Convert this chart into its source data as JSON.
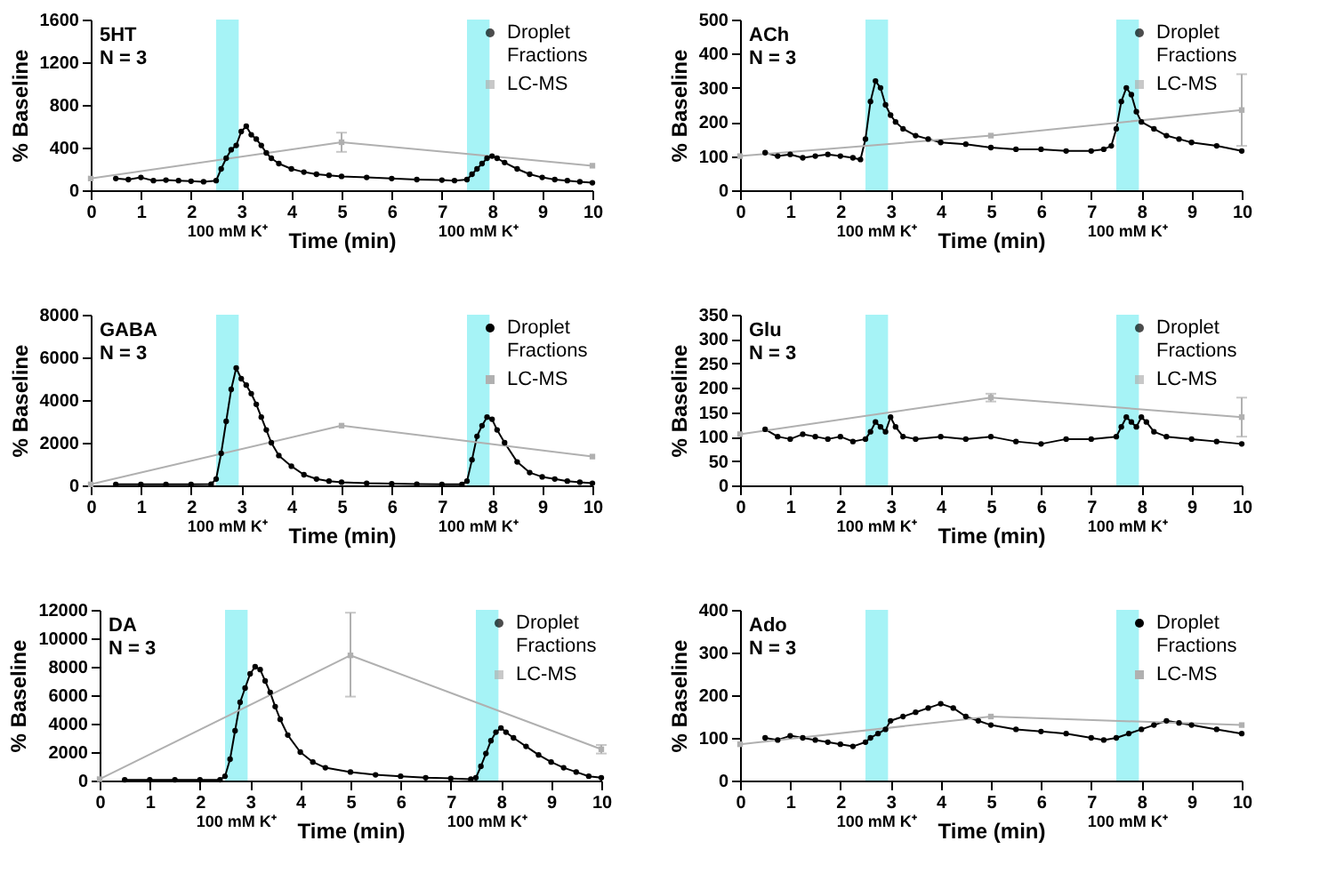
{
  "chart_data": [
    {
      "type": "line",
      "annotations": [
        "5HT",
        "N = 3"
      ],
      "xlabel": "Time (min)",
      "ylabel": "% Baseline",
      "xlim": [
        0,
        10
      ],
      "xticks": [
        0,
        1,
        2,
        3,
        4,
        5,
        6,
        7,
        8,
        9,
        10
      ],
      "ylim": [
        0,
        1600
      ],
      "yticks": [
        0,
        400,
        800,
        1200,
        1600
      ],
      "legend": "top right",
      "grid": false,
      "bands": [
        {
          "axis": "x",
          "from": 2.5,
          "to": 2.95,
          "label": "100 mM K⁺",
          "color": "#a6f3f6"
        },
        {
          "axis": "x",
          "from": 7.5,
          "to": 7.95,
          "label": "100 mM K⁺",
          "color": "#a6f3f6"
        }
      ],
      "series": [
        {
          "name": "Droplet Fractions",
          "color": "#000000",
          "marker": "circle",
          "x": [
            0.5,
            0.75,
            1,
            1.25,
            1.5,
            1.75,
            2,
            2.25,
            2.5,
            2.6,
            2.7,
            2.8,
            2.9,
            3,
            3.1,
            3.2,
            3.3,
            3.4,
            3.5,
            3.6,
            3.75,
            4,
            4.25,
            4.5,
            4.75,
            5,
            5.5,
            6,
            6.5,
            7,
            7.25,
            7.5,
            7.6,
            7.7,
            7.8,
            7.9,
            8,
            8.1,
            8.25,
            8.5,
            8.75,
            9,
            9.25,
            9.5,
            9.75,
            10
          ],
          "values": [
            110,
            100,
            120,
            90,
            95,
            90,
            85,
            80,
            90,
            200,
            300,
            380,
            420,
            550,
            600,
            520,
            480,
            420,
            350,
            300,
            250,
            200,
            170,
            150,
            140,
            130,
            120,
            110,
            100,
            95,
            90,
            100,
            150,
            200,
            250,
            300,
            320,
            300,
            260,
            200,
            150,
            120,
            100,
            90,
            80,
            70
          ]
        },
        {
          "name": "LC-MS",
          "color": "#b0b0b0",
          "marker": "square",
          "x": [
            0,
            5,
            10
          ],
          "values": [
            110,
            450,
            230
          ],
          "errors": [
            null,
            90,
            null
          ]
        }
      ]
    },
    {
      "type": "line",
      "annotations": [
        "ACh",
        "N = 3"
      ],
      "xlabel": "Time (min)",
      "ylabel": "% Baseline",
      "xlim": [
        0,
        10
      ],
      "xticks": [
        0,
        1,
        2,
        3,
        4,
        5,
        6,
        7,
        8,
        9,
        10
      ],
      "ylim": [
        0,
        500
      ],
      "yticks": [
        0,
        100,
        200,
        300,
        400,
        500
      ],
      "legend": "top right",
      "grid": false,
      "bands": [
        {
          "axis": "x",
          "from": 2.5,
          "to": 2.95,
          "label": "100 mM K⁺",
          "color": "#a6f3f6"
        },
        {
          "axis": "x",
          "from": 7.5,
          "to": 7.95,
          "label": "100 mM K⁺",
          "color": "#a6f3f6"
        }
      ],
      "series": [
        {
          "name": "Droplet Fractions",
          "color": "#000000",
          "marker": "circle",
          "x": [
            0.5,
            0.75,
            1,
            1.25,
            1.5,
            1.75,
            2,
            2.25,
            2.4,
            2.5,
            2.6,
            2.7,
            2.8,
            2.9,
            3,
            3.1,
            3.25,
            3.5,
            3.75,
            4,
            4.5,
            5,
            5.5,
            6,
            6.5,
            7,
            7.25,
            7.4,
            7.5,
            7.6,
            7.7,
            7.8,
            7.9,
            8,
            8.25,
            8.5,
            8.75,
            9,
            9.5,
            10
          ],
          "values": [
            110,
            100,
            105,
            95,
            100,
            105,
            100,
            95,
            90,
            150,
            260,
            320,
            300,
            250,
            220,
            200,
            180,
            160,
            150,
            140,
            135,
            125,
            120,
            120,
            115,
            115,
            120,
            130,
            180,
            260,
            300,
            280,
            230,
            200,
            180,
            160,
            150,
            140,
            130,
            115
          ]
        },
        {
          "name": "LC-MS",
          "color": "#b0b0b0",
          "marker": "square",
          "x": [
            0,
            5,
            10
          ],
          "values": [
            100,
            160,
            235
          ],
          "errors": [
            null,
            null,
            105
          ]
        }
      ]
    },
    {
      "type": "line",
      "annotations": [
        "GABA",
        "N = 3"
      ],
      "xlabel": "Time (min)",
      "ylabel": "% Baseline",
      "xlim": [
        0,
        10
      ],
      "xticks": [
        0,
        1,
        2,
        3,
        4,
        5,
        6,
        7,
        8,
        9,
        10
      ],
      "ylim": [
        0,
        8000
      ],
      "yticks": [
        0,
        2000,
        4000,
        6000,
        8000
      ],
      "legend": "top right",
      "grid": false,
      "bands": [
        {
          "axis": "x",
          "from": 2.5,
          "to": 2.95,
          "label": "100 mM K⁺",
          "color": "#a6f3f6"
        },
        {
          "axis": "x",
          "from": 7.5,
          "to": 7.95,
          "label": "100 mM K⁺",
          "color": "#a6f3f6"
        }
      ],
      "series": [
        {
          "name": "Droplet Fractions",
          "color": "#000000",
          "marker": "circle",
          "x": [
            0.5,
            1,
            1.5,
            2,
            2.4,
            2.5,
            2.6,
            2.7,
            2.8,
            2.9,
            3,
            3.1,
            3.2,
            3.3,
            3.4,
            3.5,
            3.6,
            3.75,
            4,
            4.25,
            4.5,
            4.75,
            5,
            5.5,
            6,
            6.5,
            7,
            7.4,
            7.5,
            7.6,
            7.7,
            7.8,
            7.9,
            8,
            8.1,
            8.25,
            8.5,
            8.75,
            9,
            9.25,
            9.5,
            9.75,
            10
          ],
          "values": [
            50,
            50,
            50,
            50,
            60,
            300,
            1500,
            3000,
            4500,
            5500,
            5000,
            4700,
            4300,
            3800,
            3200,
            2600,
            2000,
            1400,
            900,
            500,
            300,
            200,
            150,
            100,
            80,
            60,
            50,
            50,
            200,
            1200,
            2300,
            2800,
            3200,
            3100,
            2600,
            2000,
            1100,
            600,
            400,
            300,
            200,
            150,
            100
          ]
        },
        {
          "name": "LC-MS",
          "color": "#b0b0b0",
          "marker": "square",
          "x": [
            0,
            5,
            10
          ],
          "values": [
            50,
            2800,
            1350
          ]
        }
      ]
    },
    {
      "type": "line",
      "annotations": [
        "Glu",
        "N = 3"
      ],
      "xlabel": "Time (min)",
      "ylabel": "% Baseline",
      "xlim": [
        0,
        10
      ],
      "xticks": [
        0,
        1,
        2,
        3,
        4,
        5,
        6,
        7,
        8,
        9,
        10
      ],
      "ylim": [
        0,
        350
      ],
      "yticks": [
        0,
        50,
        100,
        150,
        200,
        250,
        300,
        350
      ],
      "legend": "top right",
      "grid": false,
      "bands": [
        {
          "axis": "x",
          "from": 2.5,
          "to": 2.95,
          "label": "100 mM K⁺",
          "color": "#a6f3f6"
        },
        {
          "axis": "x",
          "from": 7.5,
          "to": 7.95,
          "label": "100 mM K⁺",
          "color": "#a6f3f6"
        }
      ],
      "series": [
        {
          "name": "Droplet Fractions",
          "color": "#000000",
          "marker": "circle",
          "x": [
            0.5,
            0.75,
            1,
            1.25,
            1.5,
            1.75,
            2,
            2.25,
            2.5,
            2.6,
            2.7,
            2.8,
            2.9,
            3,
            3.1,
            3.25,
            3.5,
            4,
            4.5,
            5,
            5.5,
            6,
            6.5,
            7,
            7.5,
            7.6,
            7.7,
            7.8,
            7.9,
            8,
            8.1,
            8.25,
            8.5,
            9,
            9.5,
            10
          ],
          "values": [
            115,
            100,
            95,
            105,
            100,
            95,
            100,
            90,
            95,
            110,
            130,
            120,
            110,
            140,
            120,
            100,
            95,
            100,
            95,
            100,
            90,
            85,
            95,
            95,
            100,
            120,
            140,
            130,
            120,
            140,
            130,
            110,
            100,
            95,
            90,
            85
          ]
        },
        {
          "name": "LC-MS",
          "color": "#b0b0b0",
          "marker": "square",
          "x": [
            0,
            5,
            10
          ],
          "values": [
            105,
            180,
            140
          ],
          "errors": [
            null,
            8,
            40
          ]
        }
      ]
    },
    {
      "type": "line",
      "annotations": [
        "DA",
        "N = 3"
      ],
      "xlabel": "Time (min)",
      "ylabel": "% Baseline",
      "xlim": [
        0,
        10
      ],
      "xticks": [
        0,
        1,
        2,
        3,
        4,
        5,
        6,
        7,
        8,
        9,
        10
      ],
      "ylim": [
        0,
        12000
      ],
      "yticks": [
        0,
        2000,
        4000,
        6000,
        8000,
        10000,
        12000
      ],
      "legend": "top right",
      "grid": false,
      "bands": [
        {
          "axis": "x",
          "from": 2.5,
          "to": 2.95,
          "label": "100 mM K⁺",
          "color": "#a6f3f6"
        },
        {
          "axis": "x",
          "from": 7.5,
          "to": 7.95,
          "label": "100 mM K⁺",
          "color": "#a6f3f6"
        }
      ],
      "series": [
        {
          "name": "Droplet Fractions",
          "color": "#000000",
          "marker": "circle",
          "x": [
            0.5,
            1,
            1.5,
            2,
            2.4,
            2.5,
            2.6,
            2.7,
            2.8,
            2.9,
            3,
            3.1,
            3.2,
            3.3,
            3.4,
            3.5,
            3.6,
            3.75,
            4,
            4.25,
            4.5,
            5,
            5.5,
            6,
            6.5,
            7,
            7.4,
            7.5,
            7.6,
            7.7,
            7.8,
            7.9,
            8,
            8.1,
            8.25,
            8.5,
            8.75,
            9,
            9.25,
            9.5,
            9.75,
            10
          ],
          "values": [
            50,
            50,
            50,
            50,
            60,
            300,
            1500,
            3500,
            5500,
            6500,
            7500,
            8000,
            7800,
            7000,
            6200,
            5200,
            4300,
            3200,
            2000,
            1300,
            900,
            600,
            400,
            300,
            200,
            150,
            100,
            200,
            1000,
            1900,
            2800,
            3400,
            3700,
            3400,
            3000,
            2400,
            1800,
            1300,
            900,
            600,
            300,
            200
          ]
        },
        {
          "name": "LC-MS",
          "color": "#b0b0b0",
          "marker": "square",
          "x": [
            0,
            5,
            10
          ],
          "values": [
            100,
            8800,
            2200
          ],
          "errors": [
            null,
            [
              5900,
              11800
            ],
            300
          ]
        }
      ]
    },
    {
      "type": "line",
      "annotations": [
        "Ado",
        "N = 3"
      ],
      "xlabel": "Time (min)",
      "ylabel": "% Baseline",
      "xlim": [
        0,
        10
      ],
      "xticks": [
        0,
        1,
        2,
        3,
        4,
        5,
        6,
        7,
        8,
        9,
        10
      ],
      "ylim": [
        0,
        400
      ],
      "yticks": [
        0,
        100,
        200,
        300,
        400
      ],
      "legend": "top right",
      "grid": false,
      "bands": [
        {
          "axis": "x",
          "from": 2.5,
          "to": 2.95,
          "label": "100 mM K⁺",
          "color": "#a6f3f6"
        },
        {
          "axis": "x",
          "from": 7.5,
          "to": 7.95,
          "label": "100 mM K⁺",
          "color": "#a6f3f6"
        }
      ],
      "series": [
        {
          "name": "Droplet Fractions",
          "color": "#000000",
          "marker": "circle",
          "x": [
            0.5,
            0.75,
            1,
            1.25,
            1.5,
            1.75,
            2,
            2.25,
            2.5,
            2.6,
            2.75,
            2.9,
            3,
            3.25,
            3.5,
            3.75,
            4,
            4.25,
            4.5,
            4.75,
            5,
            5.5,
            6,
            6.5,
            7,
            7.25,
            7.5,
            7.75,
            8,
            8.25,
            8.5,
            8.75,
            9,
            9.5,
            10
          ],
          "values": [
            100,
            95,
            105,
            100,
            95,
            90,
            85,
            80,
            90,
            100,
            110,
            120,
            140,
            150,
            160,
            170,
            180,
            170,
            150,
            140,
            130,
            120,
            115,
            110,
            100,
            95,
            100,
            110,
            120,
            130,
            140,
            135,
            130,
            120,
            110
          ]
        },
        {
          "name": "LC-MS",
          "color": "#b0b0b0",
          "marker": "square",
          "x": [
            0,
            5,
            10
          ],
          "values": [
            85,
            150,
            130
          ]
        }
      ]
    }
  ]
}
